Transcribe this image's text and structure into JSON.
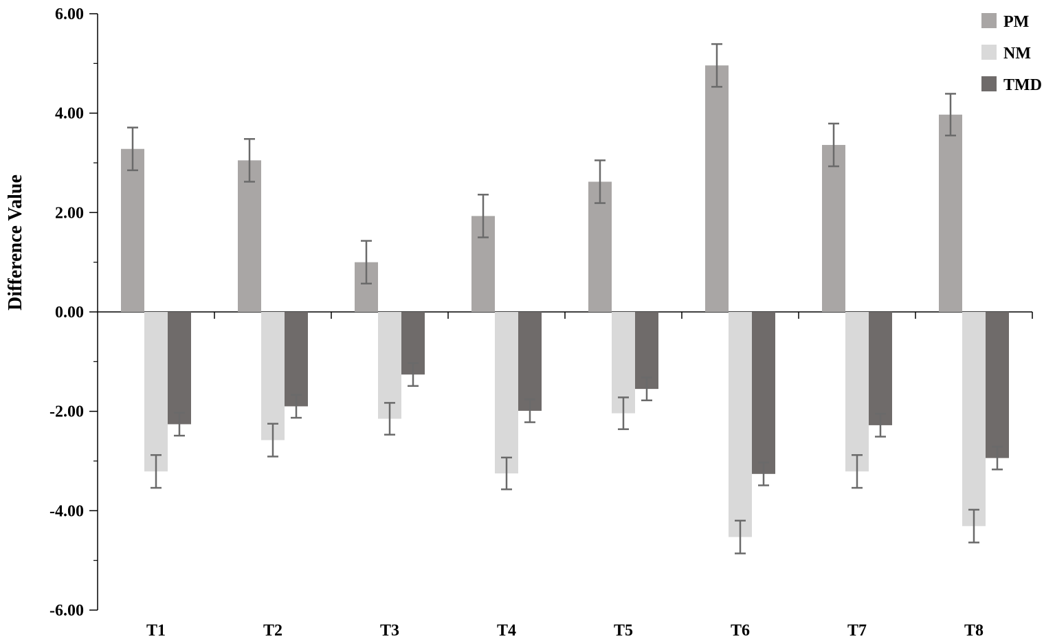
{
  "chart_data": {
    "type": "bar",
    "ylabel": "Difference Value",
    "xlabel": "",
    "ylim": [
      -6,
      6
    ],
    "yticks": [
      "6.00",
      "4.00",
      "2.00",
      "0.00",
      "-2.00",
      "-4.00",
      "-6.00"
    ],
    "categories": [
      "T1",
      "T2",
      "T3",
      "T4",
      "T5",
      "T6",
      "T7",
      "T8"
    ],
    "legend_position": "top-right",
    "series": [
      {
        "name": "PM",
        "color": "#a9a6a5",
        "values": [
          3.28,
          3.05,
          1.0,
          1.93,
          2.62,
          4.96,
          3.36,
          3.97
        ],
        "errors": [
          0.43,
          0.43,
          0.43,
          0.43,
          0.43,
          0.43,
          0.43,
          0.42
        ]
      },
      {
        "name": "NM",
        "color": "#d9d9d9",
        "values": [
          -3.21,
          -2.58,
          -2.15,
          -3.25,
          -2.04,
          -4.53,
          -3.21,
          -4.31
        ],
        "errors": [
          0.33,
          0.33,
          0.32,
          0.32,
          0.32,
          0.33,
          0.33,
          0.33
        ]
      },
      {
        "name": "TMD",
        "color": "#6f6b6a",
        "values": [
          -2.26,
          -1.9,
          -1.26,
          -1.99,
          -1.55,
          -3.26,
          -2.28,
          -2.94
        ],
        "errors": [
          0.23,
          0.23,
          0.23,
          0.23,
          0.23,
          0.23,
          0.23,
          0.23
        ]
      }
    ],
    "grid": false
  }
}
